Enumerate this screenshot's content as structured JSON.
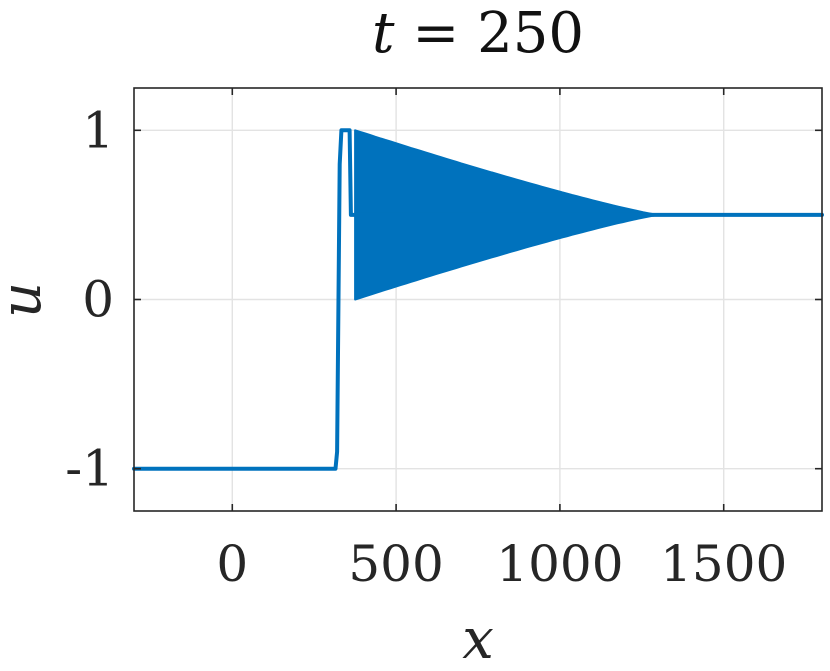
{
  "chart_data": {
    "type": "line",
    "title": {
      "var": "t",
      "eq": " = ",
      "value": "250"
    },
    "xlabel": "x",
    "ylabel": "u",
    "xlim": [
      -300,
      1800
    ],
    "ylim": [
      -1.25,
      1.25
    ],
    "grid": true,
    "xticks": [
      0,
      500,
      1000,
      1500
    ],
    "xtick_labels": [
      "0",
      "500",
      "1000",
      "1500"
    ],
    "yticks": [
      -1,
      0,
      1
    ],
    "ytick_labels": [
      "-1",
      "0",
      "1"
    ],
    "series": [
      {
        "color": "#0072BD",
        "x": [
          -300,
          315,
          320,
          328,
          333,
          358,
          362,
          1800
        ],
        "y": [
          -1,
          -1,
          -0.9,
          0.8,
          1,
          1,
          0.5,
          0.5
        ]
      }
    ],
    "oscillation_band": {
      "color": "#0072BD",
      "x_start": 375,
      "x_end": 1300,
      "upper_start": 1.0,
      "lower_start": 0.0,
      "settle_value": 0.5,
      "settle_x": 1300
    }
  }
}
